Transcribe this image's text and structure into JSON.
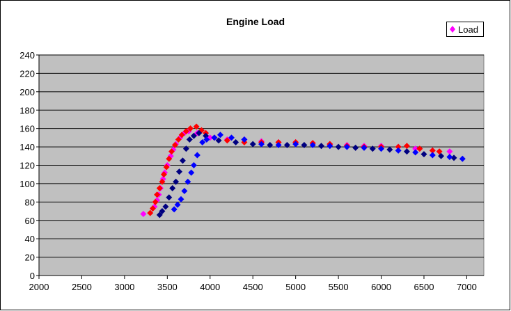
{
  "chart_data": {
    "type": "scatter",
    "title": "Engine Load",
    "xlabel": "",
    "ylabel": "",
    "xlim": [
      2000,
      7200
    ],
    "ylim": [
      0,
      240
    ],
    "xticks": [
      2000,
      2500,
      3000,
      3500,
      4000,
      4500,
      5000,
      5500,
      6000,
      6500,
      7000
    ],
    "yticks": [
      0,
      20,
      40,
      60,
      80,
      100,
      120,
      140,
      160,
      180,
      200,
      220,
      240
    ],
    "grid": "horizontal",
    "legend": {
      "entries": [
        "Load"
      ],
      "placement": "top-right"
    },
    "plot_background": "#C0C0C0",
    "series": [
      {
        "name": "Load",
        "color": "#FF00FF",
        "points": [
          [
            3220,
            67
          ],
          [
            3350,
            75
          ],
          [
            3380,
            82
          ],
          [
            3400,
            88
          ],
          [
            3420,
            95
          ],
          [
            3450,
            105
          ],
          [
            3470,
            112
          ],
          [
            3500,
            120
          ],
          [
            3540,
            130
          ],
          [
            3570,
            137
          ],
          [
            3600,
            143
          ],
          [
            3650,
            150
          ],
          [
            3700,
            155
          ],
          [
            3750,
            157
          ],
          [
            3850,
            155
          ],
          [
            4000,
            150
          ],
          [
            4200,
            148
          ],
          [
            4400,
            148
          ],
          [
            4600,
            146
          ],
          [
            4800,
            145
          ],
          [
            5000,
            145
          ],
          [
            5200,
            144
          ],
          [
            5400,
            143
          ],
          [
            5600,
            142
          ],
          [
            5800,
            141
          ],
          [
            6000,
            141
          ],
          [
            6200,
            140
          ],
          [
            6400,
            138
          ],
          [
            6600,
            136
          ],
          [
            6800,
            135
          ]
        ]
      },
      {
        "name": "Load",
        "color": "#FF0000",
        "points": [
          [
            3300,
            68
          ],
          [
            3330,
            73
          ],
          [
            3360,
            80
          ],
          [
            3380,
            88
          ],
          [
            3410,
            95
          ],
          [
            3440,
            102
          ],
          [
            3460,
            110
          ],
          [
            3490,
            118
          ],
          [
            3520,
            127
          ],
          [
            3550,
            135
          ],
          [
            3590,
            142
          ],
          [
            3630,
            148
          ],
          [
            3670,
            153
          ],
          [
            3720,
            157
          ],
          [
            3770,
            160
          ],
          [
            3840,
            162
          ],
          [
            3900,
            158
          ],
          [
            3950,
            155
          ],
          [
            4050,
            150
          ],
          [
            4200,
            147
          ],
          [
            4400,
            145
          ],
          [
            4600,
            145
          ],
          [
            4800,
            145
          ],
          [
            5000,
            145
          ],
          [
            5200,
            144
          ],
          [
            5400,
            143
          ],
          [
            5600,
            141
          ],
          [
            5800,
            140
          ],
          [
            6000,
            140
          ],
          [
            6200,
            140
          ],
          [
            6300,
            141
          ],
          [
            6450,
            138
          ],
          [
            6600,
            136
          ],
          [
            6680,
            135
          ]
        ]
      },
      {
        "name": "Load",
        "color": "#000080",
        "points": [
          [
            3410,
            66
          ],
          [
            3440,
            70
          ],
          [
            3480,
            75
          ],
          [
            3520,
            85
          ],
          [
            3560,
            95
          ],
          [
            3600,
            102
          ],
          [
            3640,
            113
          ],
          [
            3680,
            125
          ],
          [
            3720,
            138
          ],
          [
            3760,
            148
          ],
          [
            3810,
            152
          ],
          [
            3870,
            155
          ],
          [
            3950,
            152
          ],
          [
            4100,
            147
          ],
          [
            4300,
            145
          ],
          [
            4500,
            143
          ],
          [
            4700,
            142
          ],
          [
            4900,
            142
          ],
          [
            5100,
            142
          ],
          [
            5300,
            141
          ],
          [
            5500,
            140
          ],
          [
            5700,
            139
          ],
          [
            5900,
            138
          ],
          [
            6100,
            137
          ],
          [
            6300,
            135
          ],
          [
            6500,
            132
          ],
          [
            6700,
            130
          ],
          [
            6850,
            128
          ]
        ]
      },
      {
        "name": "Load",
        "color": "#0000FF",
        "points": [
          [
            3580,
            72
          ],
          [
            3620,
            77
          ],
          [
            3660,
            83
          ],
          [
            3700,
            92
          ],
          [
            3740,
            102
          ],
          [
            3780,
            112
          ],
          [
            3810,
            120
          ],
          [
            3850,
            131
          ],
          [
            3910,
            145
          ],
          [
            3960,
            148
          ],
          [
            4050,
            150
          ],
          [
            4120,
            153
          ],
          [
            4250,
            150
          ],
          [
            4400,
            148
          ],
          [
            4600,
            143
          ],
          [
            4800,
            142
          ],
          [
            5000,
            143
          ],
          [
            5200,
            142
          ],
          [
            5400,
            141
          ],
          [
            5600,
            140
          ],
          [
            5800,
            139
          ],
          [
            6000,
            138
          ],
          [
            6200,
            136
          ],
          [
            6400,
            134
          ],
          [
            6600,
            131
          ],
          [
            6800,
            129
          ],
          [
            6950,
            127
          ]
        ]
      }
    ]
  }
}
